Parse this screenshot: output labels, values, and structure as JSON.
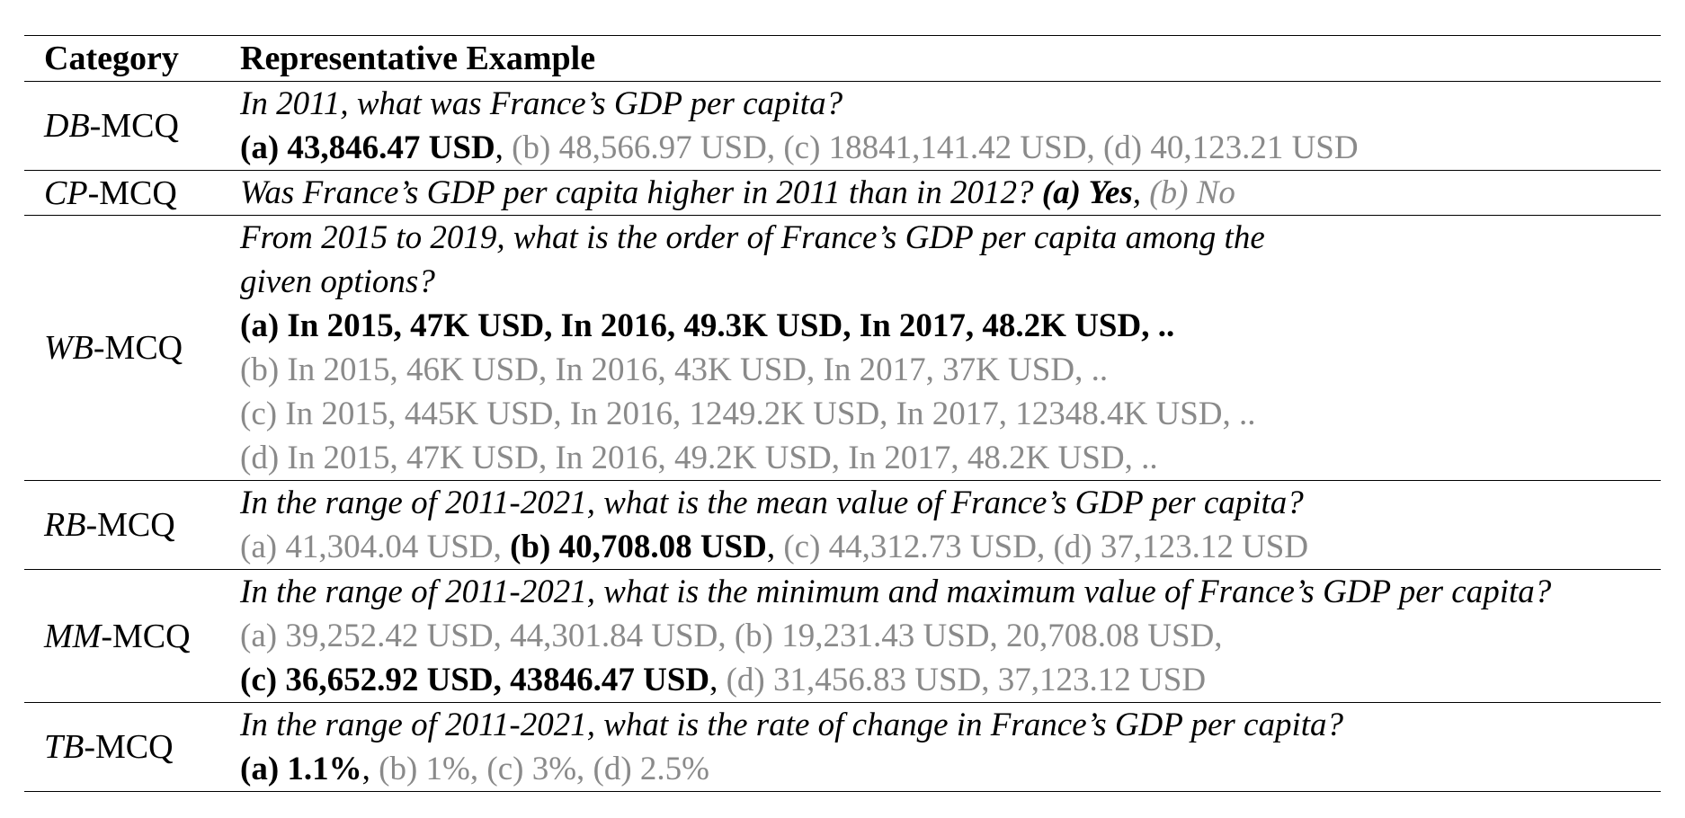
{
  "table": {
    "headers": {
      "category": "Category",
      "example": "Representative Example"
    },
    "rows": [
      {
        "abbr": "DB",
        "suffix": "-MCQ",
        "question": "In 2011, what was France’s GDP per capita?",
        "options": {
          "a": "(a) 43,846.47 USD",
          "b": "(b) 48,566.97 USD",
          "c": "(c) 18841,141.42 USD",
          "d": "(d) 40,123.21 USD"
        }
      },
      {
        "abbr": "CP",
        "suffix": "-MCQ",
        "question": "Was France’s GDP per capita higher in 2011 than in 2012?",
        "options": {
          "a": "(a) Yes",
          "b": "(b) No"
        }
      },
      {
        "abbr": "WB",
        "suffix": "-MCQ",
        "question_line1": "From 2015 to 2019, what is the order of France’s GDP per capita among the",
        "question_line2": "given options?",
        "options": {
          "a": "(a) In 2015, 47K USD, In 2016, 49.3K USD, In 2017, 48.2K USD, ..",
          "b": "(b) In 2015, 46K USD, In 2016, 43K USD, In 2017, 37K USD, ..",
          "c": "(c) In 2015, 445K USD, In 2016, 1249.2K USD, In 2017, 12348.4K USD, ..",
          "d": "(d) In 2015, 47K USD, In 2016, 49.2K USD, In 2017, 48.2K USD, .."
        }
      },
      {
        "abbr": "RB",
        "suffix": "-MCQ",
        "question": "In the range of 2011-2021, what is the mean value of France’s GDP per capita?",
        "options": {
          "a": "(a) 41,304.04 USD",
          "b": "(b) 40,708.08 USD",
          "c": "(c) 44,312.73 USD",
          "d": "(d) 37,123.12 USD"
        }
      },
      {
        "abbr": "MM",
        "suffix": "-MCQ",
        "question": "In the range of 2011-2021, what is the minimum and maximum value of France’s GDP per capita?",
        "options": {
          "a": "(a) 39,252.42 USD, 44,301.84 USD",
          "b": "(b) 19,231.43 USD, 20,708.08 USD,",
          "c": "(c) 36,652.92 USD, 43846.47 USD",
          "d": "(d) 31,456.83 USD, 37,123.12 USD"
        }
      },
      {
        "abbr": "TB",
        "suffix": "-MCQ",
        "question": "In the range of 2011-2021, what is the rate of change in France’s GDP per capita?",
        "options": {
          "a": "(a) 1.1%",
          "b": "(b) 1%",
          "c": "(c) 3%",
          "d": "(d) 2.5%"
        }
      }
    ],
    "punct": {
      "comma": ", "
    }
  }
}
